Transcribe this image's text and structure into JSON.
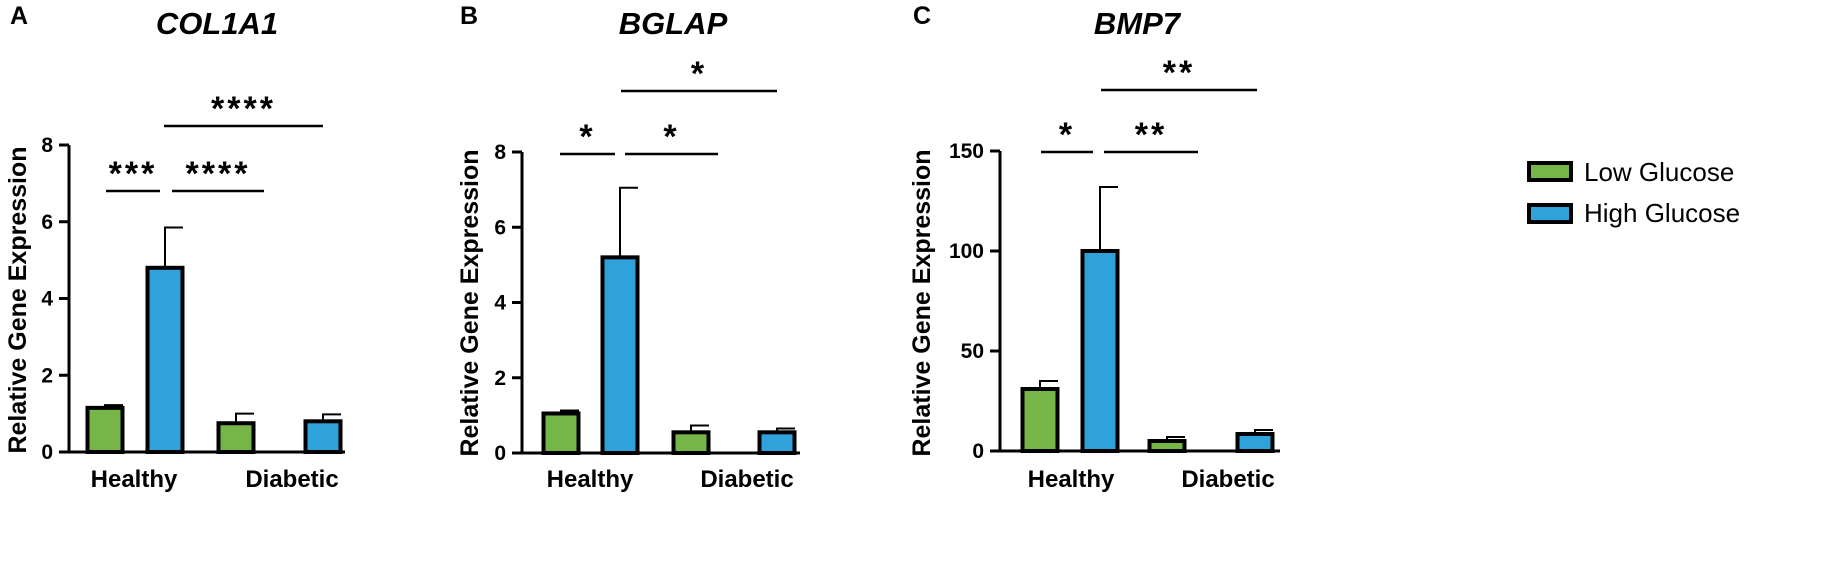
{
  "chart_data": [
    {
      "type": "bar",
      "panel": "A",
      "title": "COL1A1",
      "ylabel": "Relative Gene Expression",
      "xlabel": "",
      "categories": [
        "Healthy",
        "Diabetic"
      ],
      "ylim": [
        0,
        8
      ],
      "yticks": [
        "0",
        "2",
        "4",
        "6",
        "8"
      ],
      "series": [
        {
          "name": "Low Glucose",
          "values": [
            1.15,
            0.75
          ],
          "errors": [
            0.07,
            0.25
          ]
        },
        {
          "name": "High Glucose",
          "values": [
            4.8,
            0.8
          ],
          "errors": [
            1.05,
            0.18
          ]
        }
      ],
      "significance": [
        {
          "label": "***",
          "from": "Healthy Low Glucose",
          "to": "Healthy High Glucose"
        },
        {
          "label": "****",
          "from": "Healthy High Glucose",
          "to": "Diabetic Low Glucose"
        },
        {
          "label": "****",
          "from": "Healthy High Glucose",
          "to": "Diabetic High Glucose"
        }
      ]
    },
    {
      "type": "bar",
      "panel": "B",
      "title": "BGLAP",
      "ylabel": "Relative Gene Expression",
      "xlabel": "",
      "categories": [
        "Healthy",
        "Diabetic"
      ],
      "ylim": [
        0,
        8
      ],
      "yticks": [
        "0",
        "2",
        "4",
        "6",
        "8"
      ],
      "series": [
        {
          "name": "Low Glucose",
          "values": [
            1.05,
            0.55
          ],
          "errors": [
            0.08,
            0.18
          ]
        },
        {
          "name": "High Glucose",
          "values": [
            5.2,
            0.55
          ],
          "errors": [
            1.85,
            0.1
          ]
        }
      ],
      "significance": [
        {
          "label": "*",
          "from": "Healthy Low Glucose",
          "to": "Healthy High Glucose"
        },
        {
          "label": "*",
          "from": "Healthy High Glucose",
          "to": "Diabetic Low Glucose"
        },
        {
          "label": "*",
          "from": "Healthy High Glucose",
          "to": "Diabetic High Glucose"
        }
      ]
    },
    {
      "type": "bar",
      "panel": "C",
      "title": "BMP7",
      "ylabel": "Relative Gene Expression",
      "xlabel": "",
      "categories": [
        "Healthy",
        "Diabetic"
      ],
      "ylim": [
        0,
        150
      ],
      "yticks": [
        "0",
        "50",
        "100",
        "150"
      ],
      "series": [
        {
          "name": "Low Glucose",
          "values": [
            31,
            5
          ],
          "errors": [
            4,
            2
          ]
        },
        {
          "name": "High Glucose",
          "values": [
            100,
            8.5
          ],
          "errors": [
            32,
            2
          ]
        }
      ],
      "significance": [
        {
          "label": "*",
          "from": "Healthy Low Glucose",
          "to": "Healthy High Glucose"
        },
        {
          "label": "**",
          "from": "Healthy High Glucose",
          "to": "Diabetic Low Glucose"
        },
        {
          "label": "**",
          "from": "Healthy High Glucose",
          "to": "Diabetic High Glucose"
        }
      ]
    }
  ],
  "legend": {
    "position": "right",
    "items": [
      {
        "name": "Low Glucose",
        "color": "#76b648"
      },
      {
        "name": "High Glucose",
        "color": "#2fa2dc"
      }
    ]
  }
}
